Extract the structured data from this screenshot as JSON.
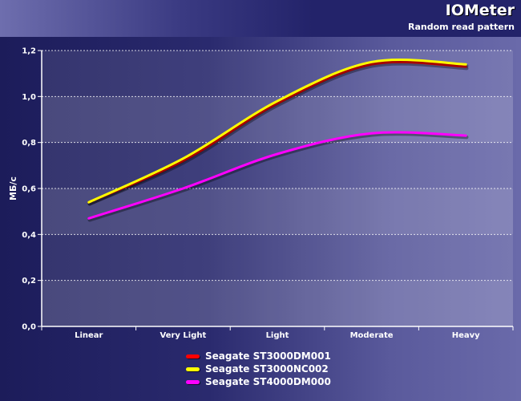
{
  "header": {
    "title": "IOMeter",
    "subtitle": "Random read pattern"
  },
  "chart_data": {
    "type": "line",
    "title": "IOMeter",
    "subtitle": "Random read pattern",
    "xlabel": "",
    "ylabel": "МБ/с",
    "ylim": [
      0,
      1.2
    ],
    "yticks": [
      "0,0",
      "0,2",
      "0,4",
      "0,6",
      "0,8",
      "1,0",
      "1,2"
    ],
    "categories": [
      "Linear",
      "Very Light",
      "Light",
      "Moderate",
      "Heavy"
    ],
    "grid": true,
    "legend_position": "bottom",
    "series": [
      {
        "name": "Seagate ST3000DM001",
        "color": "#ff0000",
        "values": [
          0.54,
          0.72,
          0.97,
          1.14,
          1.13
        ]
      },
      {
        "name": "Seagate ST3000NC002",
        "color": "#ffff00",
        "values": [
          0.54,
          0.73,
          0.98,
          1.15,
          1.14
        ]
      },
      {
        "name": "Seagate ST4000DM000",
        "color": "#ff00ff",
        "values": [
          0.47,
          0.6,
          0.75,
          0.84,
          0.83
        ]
      }
    ]
  }
}
